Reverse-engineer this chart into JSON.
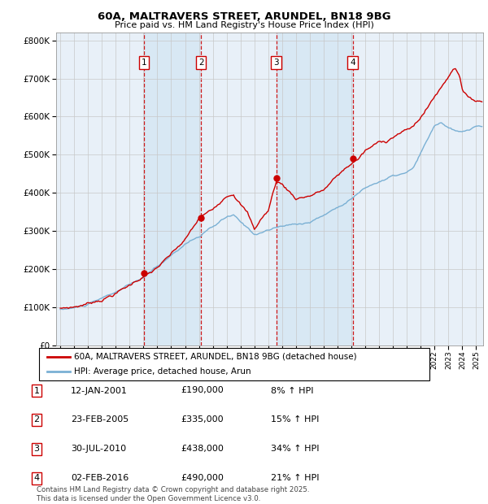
{
  "title": "60A, MALTRAVERS STREET, ARUNDEL, BN18 9BG",
  "subtitle": "Price paid vs. HM Land Registry's House Price Index (HPI)",
  "footer": "Contains HM Land Registry data © Crown copyright and database right 2025.\nThis data is licensed under the Open Government Licence v3.0.",
  "legend_line1": "60A, MALTRAVERS STREET, ARUNDEL, BN18 9BG (detached house)",
  "legend_line2": "HPI: Average price, detached house, Arun",
  "transactions": [
    {
      "num": 1,
      "date": "12-JAN-2001",
      "price": "£190,000",
      "pct": "8% ↑ HPI",
      "year": 2001.04,
      "price_val": 190000
    },
    {
      "num": 2,
      "date": "23-FEB-2005",
      "price": "£335,000",
      "pct": "15% ↑ HPI",
      "year": 2005.15,
      "price_val": 335000
    },
    {
      "num": 3,
      "date": "30-JUL-2010",
      "price": "£438,000",
      "pct": "34% ↑ HPI",
      "year": 2010.58,
      "price_val": 438000
    },
    {
      "num": 4,
      "date": "02-FEB-2016",
      "price": "£490,000",
      "pct": "21% ↑ HPI",
      "year": 2016.09,
      "price_val": 490000
    }
  ],
  "red_color": "#cc0000",
  "blue_color": "#7ab0d4",
  "vline_color": "#cc0000",
  "plot_bg": "#e8f0f8",
  "highlight_bg": "#d8e8f4",
  "ylim": [
    0,
    820000
  ],
  "yticks": [
    0,
    100000,
    200000,
    300000,
    400000,
    500000,
    600000,
    700000,
    800000
  ],
  "xlim_start": 1994.7,
  "xlim_end": 2025.5
}
